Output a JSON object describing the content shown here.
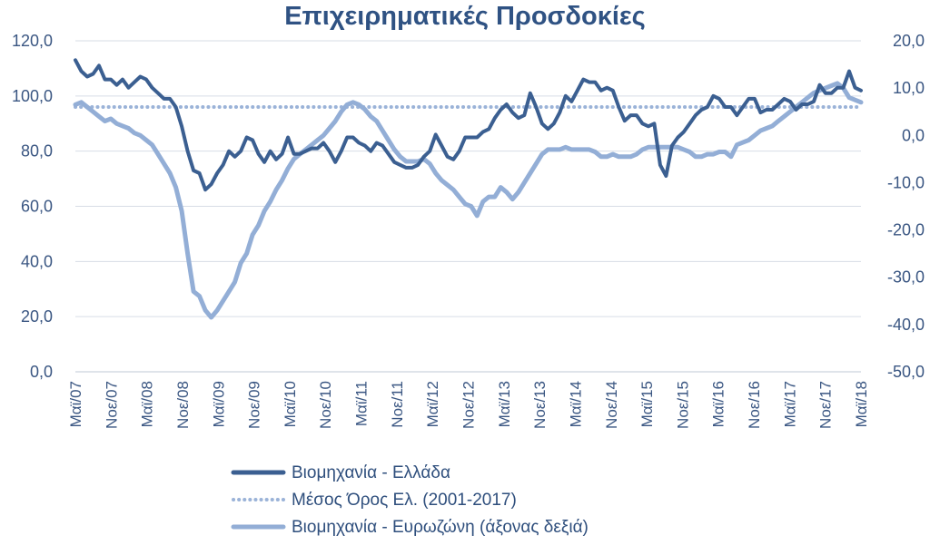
{
  "chart_data": {
    "type": "line",
    "title": "Επιχειρηματικές Προσδοκίες",
    "xlabel": "",
    "ylabel": "",
    "y_left": {
      "lim": [
        0,
        120
      ],
      "ticks": [
        "0,0",
        "20,0",
        "40,0",
        "60,0",
        "80,0",
        "100,0",
        "120,0"
      ]
    },
    "y_right": {
      "lim": [
        -50,
        20
      ],
      "ticks": [
        "-50,0",
        "-40,0",
        "-30,0",
        "-20,0",
        "-10,0",
        "0,0",
        "10,0",
        "20,0"
      ]
    },
    "x_ticks": [
      "Μαϊ/07",
      "Νοε/07",
      "Μαϊ/08",
      "Νοε/08",
      "Μαϊ/09",
      "Νοε/09",
      "Μαϊ/10",
      "Νοε/10",
      "Μαϊ/11",
      "Νοε/11",
      "Μαϊ/12",
      "Νοε/12",
      "Μαϊ/13",
      "Νοε/13",
      "Μαϊ/14",
      "Νοε/14",
      "Μαϊ/15",
      "Νοε/15",
      "Μαϊ/16",
      "Νοε/16",
      "Μαϊ/17",
      "Νοε/17",
      "Μαϊ/18"
    ],
    "grid": true,
    "legend_position": "bottom",
    "series": [
      {
        "name": "Βιομηχανία  - Ελλάδα",
        "axis": "left",
        "color": "#3b5f91",
        "values": [
          113,
          109,
          107,
          108,
          111,
          106,
          106,
          104,
          106,
          103,
          105,
          107,
          106,
          103,
          101,
          99,
          99,
          96,
          89,
          80,
          73,
          72,
          66,
          68,
          72,
          75,
          80,
          78,
          80,
          85,
          84,
          79,
          76,
          80,
          77,
          79,
          85,
          79,
          79,
          80,
          81,
          81,
          83,
          80,
          76,
          80,
          85,
          85,
          83,
          82,
          80,
          83,
          82,
          79,
          76,
          75,
          74,
          74,
          75,
          78,
          80,
          86,
          82,
          78,
          77,
          80,
          85,
          85,
          85,
          87,
          88,
          92,
          95,
          97,
          94,
          92,
          93,
          101,
          96,
          90,
          88,
          90,
          94,
          100,
          98,
          102,
          106,
          105,
          105,
          102,
          103,
          102,
          96,
          91,
          93,
          93,
          90,
          89,
          90,
          75,
          71,
          82,
          85,
          87,
          90,
          93,
          95,
          96,
          100,
          99,
          96,
          96,
          93,
          96,
          99,
          99,
          94,
          95,
          95,
          97,
          99,
          98,
          95,
          97,
          97,
          98,
          104,
          101,
          101,
          103,
          103,
          109,
          103,
          102
        ]
      },
      {
        "name": "Μέσος Όρος Ελ. (2001-2017)",
        "axis": "left",
        "color": "#9bb3d8",
        "style": "dotted",
        "values": [
          96,
          96
        ]
      },
      {
        "name": "Βιομηχανία - Ευρωζώνη (άξονας δεξιά)",
        "axis": "right",
        "color": "#93aed6",
        "values": [
          6.5,
          7,
          6,
          5,
          4,
          3,
          3.5,
          2.5,
          2,
          1.5,
          0.5,
          0,
          -1,
          -2,
          -4,
          -6,
          -8,
          -11,
          -16,
          -25,
          -33,
          -34,
          -37,
          -38.5,
          -37,
          -35,
          -33,
          -31,
          -27,
          -25,
          -21,
          -19,
          -16,
          -14,
          -11.5,
          -9.5,
          -7,
          -5,
          -4,
          -3,
          -2,
          -1,
          0,
          1.5,
          3,
          5,
          6.5,
          7,
          6.5,
          5.5,
          4,
          3,
          1,
          -1,
          -3,
          -4.5,
          -5.5,
          -5.5,
          -5.5,
          -5,
          -6,
          -8,
          -9.5,
          -10.5,
          -11.5,
          -13,
          -14.5,
          -15,
          -17,
          -14,
          -13,
          -13,
          -11,
          -12,
          -13.5,
          -12,
          -10,
          -8,
          -6,
          -4,
          -3,
          -3,
          -3,
          -2.5,
          -3,
          -3,
          -3,
          -3,
          -3.5,
          -4.5,
          -4.5,
          -4,
          -4.5,
          -4.5,
          -4.5,
          -4,
          -3,
          -2.5,
          -2.5,
          -2.5,
          -2.5,
          -2.5,
          -2.5,
          -3,
          -3.5,
          -4.5,
          -4.5,
          -4,
          -4,
          -3.5,
          -3.5,
          -4.5,
          -2,
          -1.5,
          -1,
          0,
          1,
          1.5,
          2,
          3,
          4,
          5,
          6,
          7,
          8,
          9,
          9.5,
          10,
          10.5,
          11,
          10,
          8,
          7.5,
          7
        ]
      }
    ]
  }
}
